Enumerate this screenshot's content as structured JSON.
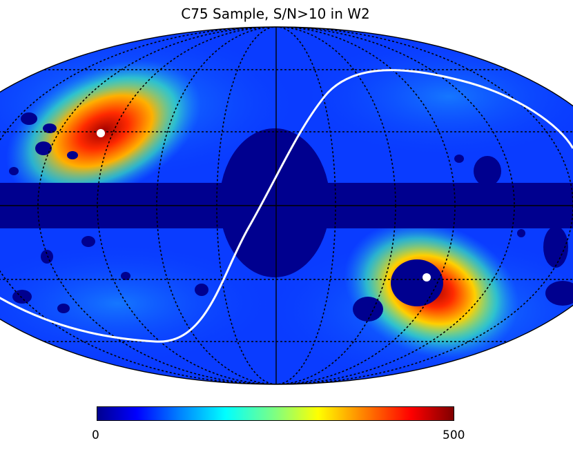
{
  "title": "C75 Sample, S/N>10 in W2",
  "colorbar": {
    "min_label": "0",
    "max_label": "500",
    "colormap": "jet",
    "range": [
      0,
      500
    ]
  },
  "projection": "mollweide",
  "colors": {
    "background_fill": "#0a3cff",
    "masked": "#00008f",
    "graticule": "#000000",
    "ecliptic_line": "#ffffff",
    "pole_markers": "#ffffff",
    "hot_region": "#c80000"
  }
}
